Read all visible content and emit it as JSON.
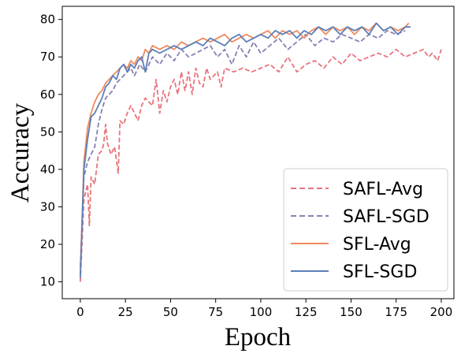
{
  "chart_data": {
    "type": "line",
    "xlabel": "Epoch",
    "ylabel": "Accuracy",
    "xlim": [
      -10,
      207
    ],
    "ylim": [
      5.5,
      83.5
    ],
    "xticks": [
      0,
      25,
      50,
      75,
      100,
      125,
      150,
      175,
      200
    ],
    "yticks": [
      10,
      20,
      30,
      40,
      50,
      60,
      70,
      80
    ],
    "grid": false,
    "legend_position": "lower-right",
    "series": [
      {
        "name": "SAFL-Avg",
        "color": "#e8747c",
        "dash": "dashed",
        "x": [
          0,
          2,
          4,
          5,
          6,
          8,
          10,
          12,
          13,
          14,
          15,
          17,
          19,
          21,
          22,
          24,
          26,
          28,
          30,
          32,
          34,
          36,
          38,
          40,
          42,
          44,
          46,
          48,
          50,
          52,
          54,
          56,
          58,
          60,
          62,
          64,
          66,
          68,
          70,
          72,
          74,
          76,
          78,
          80,
          85,
          90,
          95,
          100,
          105,
          110,
          115,
          120,
          125,
          130,
          135,
          140,
          145,
          150,
          155,
          160,
          165,
          170,
          175,
          180,
          185,
          190,
          193,
          195,
          198,
          200
        ],
        "y": [
          10,
          32,
          36,
          25,
          38,
          36,
          44,
          45,
          47,
          52,
          47,
          44,
          46,
          39,
          53,
          52,
          55,
          57,
          55,
          53,
          57,
          59,
          58,
          57,
          64,
          55,
          61,
          58,
          62,
          64,
          60,
          66,
          61,
          66,
          60,
          67,
          63,
          62,
          67,
          64,
          65,
          66,
          62,
          67,
          66,
          67,
          66,
          67,
          68,
          66,
          70,
          66,
          68,
          69,
          67,
          70,
          68,
          71,
          69,
          70,
          71,
          70,
          72,
          70,
          71,
          72,
          70,
          71,
          69,
          72
        ]
      },
      {
        "name": "SAFL-SGD",
        "color": "#8a7fb5",
        "dash": "dashed",
        "x": [
          0,
          2,
          4,
          6,
          8,
          10,
          12,
          14,
          16,
          18,
          20,
          22,
          24,
          26,
          28,
          30,
          33,
          36,
          40,
          44,
          48,
          52,
          56,
          60,
          64,
          68,
          72,
          76,
          80,
          84,
          88,
          92,
          96,
          100,
          105,
          110,
          115,
          120,
          125,
          130,
          135,
          140,
          145,
          150,
          155,
          160,
          165,
          170,
          175,
          180
        ],
        "y": [
          14,
          38,
          42,
          44,
          46,
          52,
          56,
          59,
          60,
          61,
          63,
          64,
          65,
          66,
          67,
          65,
          68,
          66,
          70,
          68,
          71,
          69,
          72,
          70,
          71,
          72,
          73,
          70,
          72,
          68,
          73,
          70,
          74,
          71,
          73,
          75,
          72,
          74,
          76,
          73,
          75,
          74,
          76,
          75,
          74,
          76,
          75,
          77,
          76,
          77
        ]
      },
      {
        "name": "SFL-Avg",
        "color": "#f08a5d",
        "dash": "solid",
        "x": [
          0,
          2,
          4,
          6,
          8,
          10,
          12,
          14,
          16,
          18,
          20,
          22,
          24,
          26,
          28,
          30,
          32,
          34,
          36,
          38,
          40,
          44,
          48,
          52,
          56,
          60,
          64,
          68,
          72,
          76,
          80,
          84,
          88,
          92,
          96,
          100,
          104,
          108,
          112,
          116,
          120,
          124,
          128,
          132,
          136,
          140,
          144,
          148,
          152,
          156,
          160,
          164,
          168,
          172,
          176,
          180,
          182
        ],
        "y": [
          12,
          42,
          51,
          55,
          58,
          60,
          61,
          63,
          64,
          65,
          66,
          67,
          68,
          67,
          69,
          68,
          70,
          69,
          72,
          71,
          73,
          72,
          73,
          72,
          74,
          73,
          74,
          75,
          74,
          75,
          76,
          74,
          75,
          76,
          75,
          76,
          77,
          75,
          77,
          76,
          77,
          75,
          77,
          78,
          76,
          78,
          77,
          78,
          76,
          78,
          77,
          79,
          77,
          78,
          77,
          78,
          79
        ]
      },
      {
        "name": "SFL-SGD",
        "color": "#5b7fba",
        "dash": "solid",
        "x": [
          0,
          2,
          4,
          6,
          8,
          10,
          12,
          14,
          16,
          18,
          20,
          22,
          24,
          26,
          28,
          30,
          32,
          34,
          36,
          38,
          40,
          44,
          48,
          52,
          56,
          60,
          64,
          68,
          72,
          76,
          80,
          84,
          88,
          92,
          96,
          100,
          104,
          108,
          112,
          116,
          120,
          124,
          128,
          132,
          136,
          140,
          144,
          148,
          152,
          156,
          160,
          164,
          168,
          172,
          176,
          180,
          183
        ],
        "y": [
          11,
          40,
          48,
          54,
          55,
          57,
          59,
          62,
          63,
          65,
          64,
          67,
          68,
          66,
          68,
          67,
          69,
          70,
          66,
          71,
          72,
          71,
          72,
          73,
          72,
          73,
          74,
          73,
          75,
          74,
          73,
          75,
          76,
          74,
          75,
          76,
          75,
          77,
          76,
          77,
          75,
          77,
          76,
          78,
          77,
          78,
          76,
          78,
          77,
          78,
          76,
          79,
          77,
          78,
          76,
          78,
          78
        ]
      }
    ]
  }
}
